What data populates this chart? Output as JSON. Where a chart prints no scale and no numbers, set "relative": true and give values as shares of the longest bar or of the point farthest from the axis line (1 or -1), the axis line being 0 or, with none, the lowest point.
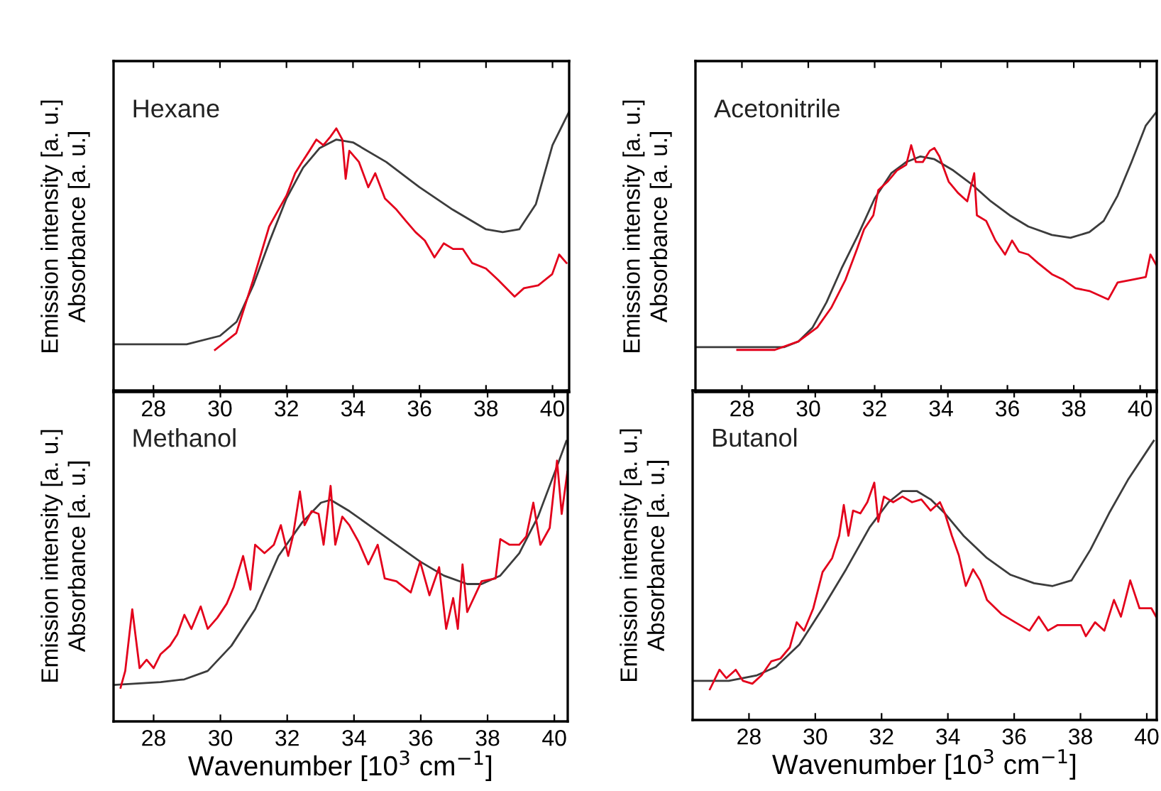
{
  "chart_data": [
    {
      "type": "line",
      "title": "Hexane",
      "ylabel": "Emission intensity [a. u.]\nAbsorbance [a. u.]",
      "relative": true,
      "tick_labels": "x",
      "xlim": [
        26.8,
        40.5
      ],
      "xticks": [
        28,
        30,
        32,
        34,
        36,
        38,
        40
      ],
      "series": [
        {
          "color": "#3c3c3c",
          "x": [
            26.8,
            29,
            30,
            30.5,
            31,
            31.5,
            32,
            32.5,
            33,
            33.5,
            34,
            35,
            36,
            37,
            38,
            38.5,
            39,
            39.5,
            40,
            40.5
          ],
          "values": [
            0.17,
            0.17,
            0.2,
            0.25,
            0.38,
            0.54,
            0.69,
            0.8,
            0.87,
            0.9,
            0.89,
            0.82,
            0.73,
            0.65,
            0.58,
            0.57,
            0.58,
            0.67,
            0.88,
            1.0
          ]
        },
        {
          "color": "#e3001b",
          "x": [
            29.85,
            30.49,
            31.0,
            31.48,
            31.76,
            32.0,
            32.26,
            32.47,
            32.69,
            32.9,
            33.11,
            33.32,
            33.5,
            33.68,
            33.78,
            33.89,
            34.18,
            34.46,
            34.67,
            34.96,
            35.31,
            35.59,
            35.88,
            36.16,
            36.45,
            36.73,
            37.01,
            37.3,
            37.58,
            38.0,
            38.36,
            38.86,
            39.14,
            39.57,
            39.99,
            40.2,
            40.42
          ],
          "values": [
            0.15,
            0.21,
            0.4,
            0.59,
            0.65,
            0.7,
            0.78,
            0.82,
            0.86,
            0.9,
            0.88,
            0.91,
            0.94,
            0.9,
            0.76,
            0.86,
            0.82,
            0.73,
            0.78,
            0.69,
            0.65,
            0.61,
            0.57,
            0.54,
            0.48,
            0.53,
            0.51,
            0.51,
            0.46,
            0.44,
            0.4,
            0.34,
            0.37,
            0.38,
            0.42,
            0.49,
            0.46
          ]
        }
      ]
    },
    {
      "type": "line",
      "title": "Acetonitrile",
      "ylabel": "Emission intensity [a. u.]\nAbsorbance [a. u.]",
      "relative": true,
      "tick_labels": "x",
      "xlim": [
        26.6,
        40.5
      ],
      "xticks": [
        28,
        30,
        32,
        34,
        36,
        38,
        40
      ],
      "series": [
        {
          "color": "#3c3c3c",
          "x": [
            26.6,
            29.28,
            29.7,
            30.13,
            30.55,
            31.0,
            31.5,
            32.0,
            32.5,
            32.95,
            33.38,
            33.8,
            34.37,
            34.93,
            35.5,
            36.07,
            36.63,
            37.34,
            37.9,
            38.47,
            38.9,
            39.32,
            39.74,
            40.17,
            40.5
          ],
          "values": [
            0.16,
            0.16,
            0.18,
            0.23,
            0.32,
            0.44,
            0.56,
            0.69,
            0.78,
            0.82,
            0.84,
            0.83,
            0.79,
            0.74,
            0.68,
            0.63,
            0.59,
            0.56,
            0.55,
            0.57,
            0.61,
            0.7,
            0.82,
            0.95,
            1.0
          ]
        },
        {
          "color": "#e3001b",
          "x": [
            27.86,
            28.99,
            29.7,
            30.27,
            30.69,
            31.12,
            31.47,
            31.68,
            31.96,
            32.11,
            32.39,
            32.67,
            32.95,
            33.1,
            33.24,
            33.45,
            33.66,
            33.8,
            33.95,
            34.23,
            34.51,
            34.79,
            35.0,
            35.08,
            35.36,
            35.64,
            35.93,
            36.14,
            36.35,
            36.63,
            36.92,
            37.34,
            37.69,
            38.05,
            38.47,
            39.04,
            39.32,
            39.74,
            40.17,
            40.31,
            40.5
          ],
          "values": [
            0.15,
            0.15,
            0.18,
            0.23,
            0.3,
            0.4,
            0.51,
            0.58,
            0.63,
            0.72,
            0.75,
            0.79,
            0.81,
            0.88,
            0.82,
            0.82,
            0.86,
            0.87,
            0.84,
            0.75,
            0.71,
            0.68,
            0.78,
            0.63,
            0.61,
            0.54,
            0.49,
            0.54,
            0.5,
            0.49,
            0.46,
            0.42,
            0.4,
            0.37,
            0.36,
            0.33,
            0.39,
            0.4,
            0.41,
            0.49,
            0.45
          ]
        }
      ]
    },
    {
      "type": "line",
      "title": "Methanol",
      "ylabel": "Emission intensity [a. u.]\nAbsorbance [a. u.]",
      "xlabel": "Wavenumber [10$^{3}$ cm$^{−1}$]",
      "relative": true,
      "tick_labels": "x",
      "xlim": [
        26.8,
        40.4
      ],
      "xticks": [
        28,
        30,
        32,
        34,
        36,
        38,
        40
      ],
      "series": [
        {
          "color": "#3c3c3c",
          "x": [
            26.8,
            28.21,
            28.92,
            29.62,
            30.33,
            31.04,
            31.74,
            32.45,
            33.01,
            33.3,
            33.86,
            34.57,
            35.27,
            35.98,
            36.69,
            37.39,
            37.82,
            38.38,
            38.95,
            39.51,
            40.08,
            40.36
          ],
          "values": [
            0.13,
            0.14,
            0.15,
            0.18,
            0.27,
            0.4,
            0.59,
            0.71,
            0.78,
            0.79,
            0.75,
            0.69,
            0.63,
            0.57,
            0.52,
            0.49,
            0.49,
            0.52,
            0.6,
            0.73,
            0.91,
            1.0
          ]
        },
        {
          "color": "#e3001b",
          "x": [
            27.01,
            27.15,
            27.36,
            27.58,
            27.79,
            28.0,
            28.21,
            28.49,
            28.71,
            28.92,
            29.13,
            29.41,
            29.62,
            29.91,
            30.19,
            30.4,
            30.68,
            30.9,
            31.04,
            31.32,
            31.6,
            31.81,
            32.03,
            32.17,
            32.38,
            32.52,
            32.73,
            32.94,
            33.09,
            33.3,
            33.44,
            33.65,
            33.86,
            34.14,
            34.43,
            34.71,
            34.92,
            35.27,
            35.7,
            35.98,
            36.26,
            36.55,
            36.76,
            36.97,
            37.11,
            37.25,
            37.39,
            37.82,
            38.24,
            38.38,
            38.66,
            38.95,
            39.16,
            39.37,
            39.58,
            39.86,
            40.08,
            40.22,
            40.39
          ],
          "values": [
            0.12,
            0.18,
            0.4,
            0.19,
            0.22,
            0.19,
            0.24,
            0.27,
            0.31,
            0.38,
            0.33,
            0.41,
            0.33,
            0.37,
            0.42,
            0.48,
            0.59,
            0.47,
            0.63,
            0.6,
            0.63,
            0.7,
            0.59,
            0.66,
            0.82,
            0.7,
            0.75,
            0.74,
            0.63,
            0.84,
            0.63,
            0.73,
            0.7,
            0.64,
            0.56,
            0.63,
            0.51,
            0.5,
            0.46,
            0.57,
            0.45,
            0.55,
            0.33,
            0.44,
            0.33,
            0.56,
            0.39,
            0.5,
            0.51,
            0.65,
            0.63,
            0.63,
            0.66,
            0.78,
            0.63,
            0.69,
            0.93,
            0.74,
            0.89
          ]
        }
      ]
    },
    {
      "type": "line",
      "title": "Butanol",
      "ylabel": "Emission intensity [a. u.]\nAbsorbance [a. u.]",
      "xlabel": "Wavenumber [10$^{3}$ cm$^{−1}$]",
      "relative": true,
      "tick_labels": "x",
      "xlim": [
        26.3,
        40.3
      ],
      "xticks": [
        28,
        30,
        32,
        34,
        36,
        38,
        40
      ],
      "series": [
        {
          "color": "#3c3c3c",
          "x": [
            26.33,
            27.39,
            28.24,
            28.81,
            29.52,
            30.22,
            30.93,
            31.64,
            32.21,
            32.63,
            33.06,
            33.48,
            33.91,
            34.47,
            35.18,
            35.89,
            36.6,
            37.16,
            37.73,
            38.3,
            38.86,
            39.43,
            40.21
          ],
          "values": [
            0.14,
            0.14,
            0.16,
            0.19,
            0.27,
            0.4,
            0.54,
            0.69,
            0.78,
            0.82,
            0.82,
            0.79,
            0.74,
            0.66,
            0.58,
            0.52,
            0.49,
            0.48,
            0.5,
            0.61,
            0.74,
            0.86,
            1.0
          ]
        },
        {
          "color": "#e3001b",
          "x": [
            26.82,
            27.11,
            27.32,
            27.6,
            27.82,
            28.1,
            28.38,
            28.67,
            28.95,
            29.23,
            29.44,
            29.66,
            29.94,
            30.22,
            30.51,
            30.72,
            30.86,
            31.0,
            31.14,
            31.36,
            31.57,
            31.78,
            31.9,
            32.07,
            32.35,
            32.63,
            32.92,
            33.2,
            33.48,
            33.76,
            33.91,
            34.12,
            34.33,
            34.54,
            34.76,
            34.97,
            35.18,
            35.61,
            36.03,
            36.46,
            36.74,
            37.02,
            37.31,
            37.73,
            38.01,
            38.16,
            38.44,
            38.72,
            39.01,
            39.22,
            39.5,
            39.78,
            40.14,
            40.28
          ],
          "values": [
            0.11,
            0.18,
            0.15,
            0.18,
            0.14,
            0.13,
            0.16,
            0.21,
            0.22,
            0.26,
            0.35,
            0.32,
            0.4,
            0.53,
            0.58,
            0.66,
            0.77,
            0.66,
            0.75,
            0.74,
            0.78,
            0.85,
            0.71,
            0.8,
            0.78,
            0.8,
            0.78,
            0.79,
            0.75,
            0.78,
            0.74,
            0.66,
            0.59,
            0.48,
            0.54,
            0.5,
            0.43,
            0.38,
            0.35,
            0.32,
            0.37,
            0.32,
            0.34,
            0.34,
            0.34,
            0.3,
            0.35,
            0.32,
            0.43,
            0.37,
            0.5,
            0.4,
            0.4,
            0.37
          ]
        }
      ]
    }
  ]
}
